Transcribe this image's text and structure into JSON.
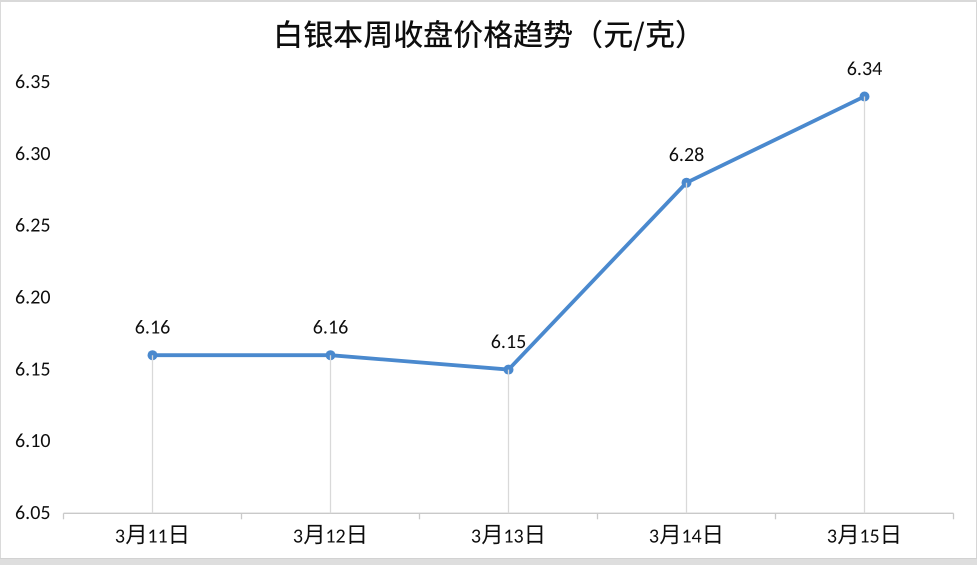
{
  "chart_data": {
    "type": "line",
    "title": "白银本周收盘价格趋势（元/克）",
    "categories": [
      "3月11日",
      "3月12日",
      "3月13日",
      "3月14日",
      "3月15日"
    ],
    "series": [
      {
        "values": [
          6.16,
          6.16,
          6.15,
          6.28,
          6.34
        ]
      }
    ],
    "data_labels": [
      "6.16",
      "6.16",
      "6.15",
      "6.28",
      "6.34"
    ],
    "ylim": [
      6.05,
      6.35
    ],
    "ytick_step": 0.05,
    "ytick_labels": [
      "6.05",
      "6.10",
      "6.15",
      "6.20",
      "6.25",
      "6.30",
      "6.35"
    ],
    "xlabel": "",
    "ylabel": "",
    "grid": "off",
    "drop_lines": "on",
    "legend": "none",
    "colors": {
      "series_line": "#4a89ce",
      "marker_fill": "#4a89ce",
      "drop_line": "#d9d9d9",
      "axis_line": "#c9c9c9",
      "tick": "#c9c9c9",
      "text": "#0d0d0d",
      "title_text": "#0d0d0d",
      "background": "#ffffff",
      "frame": "#d9d9d9"
    }
  }
}
